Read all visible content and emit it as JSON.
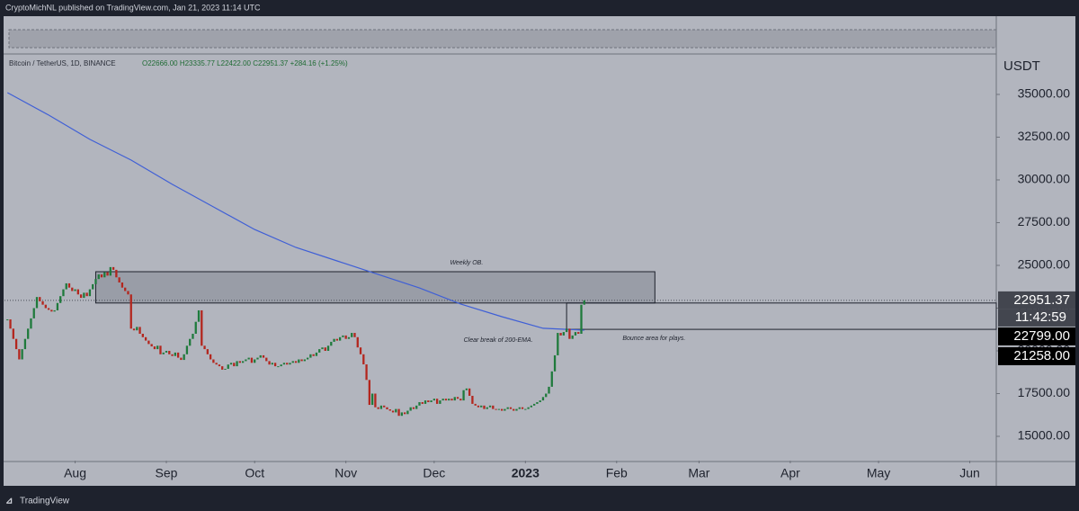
{
  "chart_data": {
    "type": "candlestick",
    "header": "CryptoMichNL published on TradingView.com, Jan 21, 2023 11:14 UTC",
    "symbol": "Bitcoin / TetherUS, 1D, BINANCE",
    "ohlc_text": "O22666.00 H23335.77 L22422.00 C22951.37 +284.16 (+1.25%)",
    "axis_unit": "USDT",
    "footer": "TradingView",
    "up_color": "#1f7a3c",
    "down_color": "#b3261e",
    "close": [
      21840,
      21300,
      20700,
      20100,
      19500,
      20100,
      20700,
      21300,
      21900,
      22500,
      23150,
      22900,
      22700,
      22500,
      22400,
      22300,
      22370,
      22800,
      23200,
      23600,
      23950,
      23700,
      23500,
      23600,
      23300,
      23100,
      23400,
      23200,
      23600,
      23900,
      24200,
      24470,
      24300,
      24600,
      24400,
      24900,
      24740,
      24300,
      24000,
      23700,
      23500,
      23300,
      21300,
      21200,
      21400,
      21000,
      20800,
      20600,
      20400,
      20260,
      20100,
      20300,
      19800,
      19900,
      20000,
      19800,
      19700,
      19900,
      19600,
      19470,
      19800,
      20300,
      20700,
      21000,
      21700,
      22370,
      20300,
      20100,
      19800,
      19500,
      19300,
      19200,
      19100,
      18900,
      18950,
      19200,
      19300,
      19100,
      19400,
      19300,
      19400,
      19500,
      19600,
      19300,
      19500,
      19600,
      19740,
      19600,
      19400,
      19200,
      19300,
      19100,
      19100,
      19200,
      19300,
      19200,
      19300,
      19400,
      19300,
      19500,
      19400,
      19500,
      19600,
      19800,
      19700,
      19900,
      20100,
      20200,
      20000,
      20300,
      20530,
      20700,
      20600,
      20800,
      20900,
      20700,
      20800,
      21050,
      20800,
      20200,
      19800,
      19210,
      18300,
      16840,
      17500,
      16700,
      16600,
      16800,
      16700,
      16580,
      16500,
      16400,
      16600,
      16200,
      16400,
      16300,
      16500,
      16700,
      16600,
      16800,
      17000,
      16900,
      17100,
      17000,
      17100,
      17200,
      16900,
      17100,
      17200,
      17100,
      17200,
      17100,
      17300,
      17200,
      17100,
      17700,
      17800,
      17370,
      16900,
      16800,
      16700,
      16800,
      16600,
      16700,
      16800,
      16600,
      16580,
      16600,
      16500,
      16600,
      16700,
      16600,
      16500,
      16600,
      16700,
      16600,
      16600,
      16700,
      16800,
      16900,
      17000,
      17100,
      17300,
      17500,
      17900,
      18800,
      19740,
      21050,
      20900,
      21100,
      21300,
      20700,
      20900,
      21100,
      21000,
      22700,
      22951.37
    ],
    "ema": {
      "color": "#3f5fd6",
      "x": [
        0,
        14,
        28,
        42,
        56,
        70,
        84,
        98,
        112,
        126,
        140,
        154,
        168,
        182,
        196
      ],
      "values": [
        35100,
        33790,
        32370,
        31160,
        29740,
        28420,
        27100,
        26050,
        25260,
        24470,
        23680,
        22740,
        22000,
        21320,
        21210
      ]
    },
    "xlim": [
      -1,
      336
    ],
    "xticks": [
      {
        "value": 23,
        "label": "Aug"
      },
      {
        "value": 54,
        "label": "Sep"
      },
      {
        "value": 84,
        "label": "Oct"
      },
      {
        "value": 115,
        "label": "Nov"
      },
      {
        "value": 145,
        "label": "Dec"
      },
      {
        "value": 176,
        "label": "2023"
      },
      {
        "value": 207,
        "label": "Feb"
      },
      {
        "value": 235,
        "label": "Mar"
      },
      {
        "value": 266,
        "label": "Apr"
      },
      {
        "value": 296,
        "label": "May"
      },
      {
        "value": 327,
        "label": "Jun"
      }
    ],
    "ylim": [
      13580,
      37260
    ],
    "yticks": [
      {
        "value": 15000,
        "label": "15000.00"
      },
      {
        "value": 17500,
        "label": "17500.00"
      },
      {
        "value": 20000,
        "label": "20000.00"
      },
      {
        "value": 22500,
        "label": "22500.00"
      },
      {
        "value": 25000,
        "label": "25000.00"
      },
      {
        "value": 27500,
        "label": "27500.00"
      },
      {
        "value": 30000,
        "label": "30000.00"
      },
      {
        "value": 32500,
        "label": "32500.00"
      },
      {
        "value": 35000,
        "label": "35000.00"
      }
    ],
    "zones": [
      {
        "label": "Weekly OB.",
        "range": [
          22799,
          24630
        ]
      },
      {
        "label": "Bounce area for plays.",
        "range": [
          21258,
          22799
        ]
      }
    ],
    "annotation": "Clear break of 200-EMA.",
    "last_price": {
      "value": 22951.37,
      "label": "22951.37"
    },
    "countdown": "11:42:59",
    "levels": [
      {
        "value": 22799,
        "label": "22799.00"
      },
      {
        "value": 21258,
        "label": "21258.00"
      }
    ]
  }
}
